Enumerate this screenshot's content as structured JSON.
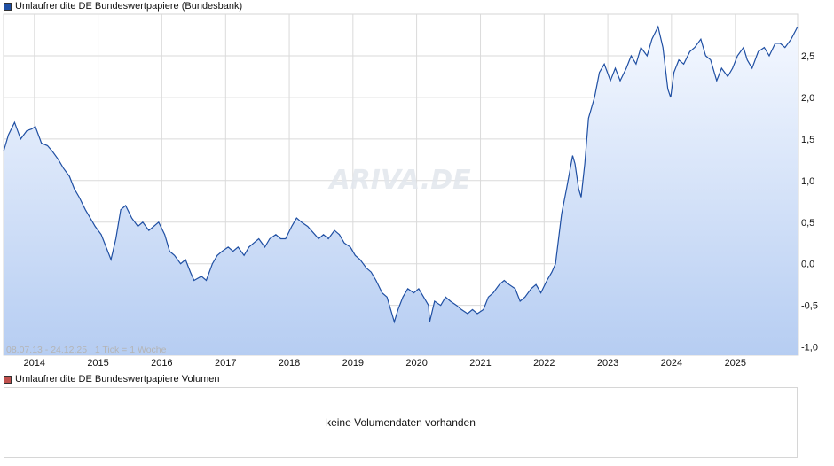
{
  "legend": {
    "price_label": "Umlaufrendite DE Bundeswertpapiere (Bundesbank)",
    "price_color": "#1f4fa3",
    "volume_label": "Umlaufrendite DE Bundeswertpapiere Volumen",
    "volume_color": "#c0504d"
  },
  "watermark": "ARIVA.DE",
  "range_info": "08.07.13 - 24.12.25   1 Tick = 1 Woche",
  "volume_message": "keine Volumendaten vorhanden",
  "chart_data": {
    "type": "area",
    "title": "Umlaufrendite DE Bundeswertpapiere (Bundesbank)",
    "xlabel": "",
    "ylabel": "",
    "x_range": [
      "2013-07-08",
      "2025-12-24"
    ],
    "ylim": [
      -1.1,
      3.0
    ],
    "y_ticks": [
      -1.0,
      -0.5,
      0.0,
      0.5,
      1.0,
      1.5,
      2.0,
      2.5
    ],
    "y_tick_labels": [
      "-1,0",
      "-0,5",
      "0,0",
      "0,5",
      "1,0",
      "1,5",
      "2,0",
      "2,5"
    ],
    "x_ticks": [
      2014,
      2015,
      2016,
      2017,
      2018,
      2019,
      2020,
      2021,
      2022,
      2023,
      2024,
      2025
    ],
    "grid": true,
    "line_color": "#1f4fa3",
    "fill_top_color": "#f4f8ff",
    "fill_bottom_color": "#b6cdf2",
    "series": [
      {
        "name": "Umlaufrendite DE Bundeswertpapiere (Bundesbank)",
        "x": [
          "2013-07-08",
          "2013-08-05",
          "2013-09-09",
          "2013-10-14",
          "2013-11-18",
          "2013-12-16",
          "2014-01-06",
          "2014-02-10",
          "2014-03-17",
          "2014-04-14",
          "2014-05-19",
          "2014-06-16",
          "2014-07-21",
          "2014-08-18",
          "2014-09-15",
          "2014-10-20",
          "2014-11-17",
          "2014-12-15",
          "2015-01-19",
          "2015-02-16",
          "2015-03-16",
          "2015-04-13",
          "2015-05-11",
          "2015-06-08",
          "2015-07-13",
          "2015-08-17",
          "2015-09-14",
          "2015-10-19",
          "2015-11-16",
          "2015-12-14",
          "2016-01-18",
          "2016-02-15",
          "2016-03-14",
          "2016-04-18",
          "2016-05-16",
          "2016-06-13",
          "2016-07-04",
          "2016-08-15",
          "2016-09-12",
          "2016-10-17",
          "2016-11-14",
          "2016-12-12",
          "2017-01-16",
          "2017-02-13",
          "2017-03-13",
          "2017-04-17",
          "2017-05-15",
          "2017-06-12",
          "2017-07-10",
          "2017-08-14",
          "2017-09-11",
          "2017-10-16",
          "2017-11-13",
          "2017-12-11",
          "2018-01-15",
          "2018-02-12",
          "2018-03-12",
          "2018-04-16",
          "2018-05-28",
          "2018-06-18",
          "2018-07-16",
          "2018-08-13",
          "2018-09-17",
          "2018-10-15",
          "2018-11-12",
          "2018-12-17",
          "2019-01-14",
          "2019-02-11",
          "2019-03-18",
          "2019-04-15",
          "2019-05-13",
          "2019-06-17",
          "2019-07-15",
          "2019-08-12",
          "2019-08-26",
          "2019-09-16",
          "2019-10-14",
          "2019-11-11",
          "2019-12-16",
          "2020-01-13",
          "2020-02-10",
          "2020-03-09",
          "2020-03-16",
          "2020-04-13",
          "2020-05-18",
          "2020-06-15",
          "2020-07-13",
          "2020-08-17",
          "2020-09-14",
          "2020-10-19",
          "2020-11-16",
          "2020-12-14",
          "2021-01-18",
          "2021-02-15",
          "2021-03-15",
          "2021-04-19",
          "2021-05-17",
          "2021-06-14",
          "2021-07-19",
          "2021-08-16",
          "2021-09-13",
          "2021-10-18",
          "2021-11-15",
          "2021-12-13",
          "2022-01-17",
          "2022-02-14",
          "2022-03-07",
          "2022-04-11",
          "2022-05-09",
          "2022-06-13",
          "2022-06-27",
          "2022-07-18",
          "2022-08-01",
          "2022-08-22",
          "2022-09-12",
          "2022-10-17",
          "2022-11-14",
          "2022-12-12",
          "2023-01-16",
          "2023-02-13",
          "2023-03-13",
          "2023-04-17",
          "2023-05-15",
          "2023-06-12",
          "2023-07-10",
          "2023-08-14",
          "2023-09-11",
          "2023-10-16",
          "2023-11-13",
          "2023-12-11",
          "2023-12-27",
          "2024-01-15",
          "2024-02-12",
          "2024-03-11",
          "2024-04-15",
          "2024-05-13",
          "2024-06-17",
          "2024-07-15",
          "2024-08-12",
          "2024-09-16",
          "2024-10-14",
          "2024-11-18",
          "2024-12-16",
          "2025-01-13",
          "2025-02-17",
          "2025-03-10",
          "2025-04-07",
          "2025-05-12",
          "2025-06-16",
          "2025-07-14",
          "2025-08-18",
          "2025-09-15",
          "2025-10-13",
          "2025-11-17",
          "2025-12-24"
        ],
        "values": [
          1.35,
          1.55,
          1.7,
          1.5,
          1.6,
          1.62,
          1.65,
          1.45,
          1.42,
          1.35,
          1.25,
          1.15,
          1.05,
          0.9,
          0.8,
          0.65,
          0.55,
          0.45,
          0.35,
          0.2,
          0.05,
          0.3,
          0.65,
          0.7,
          0.55,
          0.45,
          0.5,
          0.4,
          0.45,
          0.5,
          0.35,
          0.15,
          0.1,
          0.0,
          0.05,
          -0.1,
          -0.2,
          -0.15,
          -0.2,
          0.0,
          0.1,
          0.15,
          0.2,
          0.15,
          0.2,
          0.1,
          0.2,
          0.25,
          0.3,
          0.2,
          0.3,
          0.35,
          0.3,
          0.3,
          0.45,
          0.55,
          0.5,
          0.45,
          0.35,
          0.3,
          0.35,
          0.3,
          0.4,
          0.35,
          0.25,
          0.2,
          0.1,
          0.05,
          -0.05,
          -0.1,
          -0.2,
          -0.35,
          -0.4,
          -0.6,
          -0.7,
          -0.55,
          -0.4,
          -0.3,
          -0.35,
          -0.3,
          -0.4,
          -0.5,
          -0.7,
          -0.45,
          -0.5,
          -0.4,
          -0.45,
          -0.5,
          -0.55,
          -0.6,
          -0.55,
          -0.6,
          -0.55,
          -0.4,
          -0.35,
          -0.25,
          -0.2,
          -0.25,
          -0.3,
          -0.45,
          -0.4,
          -0.3,
          -0.25,
          -0.35,
          -0.2,
          -0.1,
          0.0,
          0.6,
          0.9,
          1.3,
          1.2,
          0.9,
          0.8,
          1.2,
          1.75,
          2.0,
          2.3,
          2.4,
          2.2,
          2.35,
          2.2,
          2.35,
          2.5,
          2.4,
          2.6,
          2.5,
          2.7,
          2.85,
          2.6,
          2.1,
          2.0,
          2.3,
          2.45,
          2.4,
          2.55,
          2.6,
          2.7,
          2.5,
          2.45,
          2.2,
          2.35,
          2.25,
          2.35,
          2.5,
          2.6,
          2.45,
          2.35,
          2.55,
          2.6,
          2.5,
          2.65,
          2.65,
          2.6,
          2.7,
          2.85
        ]
      }
    ]
  }
}
